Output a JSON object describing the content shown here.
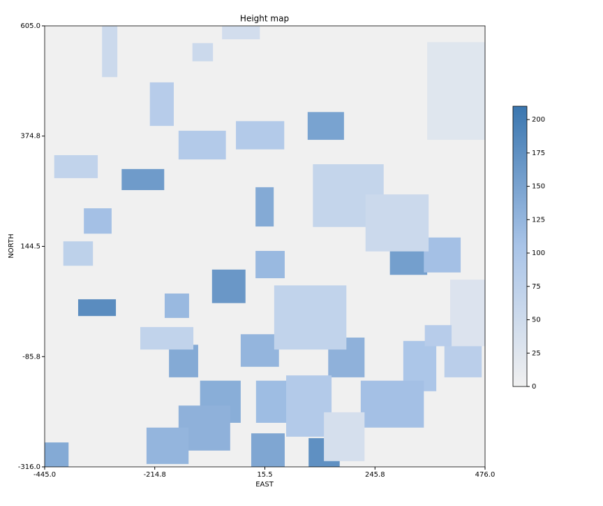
{
  "chart_data": {
    "type": "heatmap",
    "title": "Height map",
    "xlabel": "EAST",
    "ylabel": "NORTH",
    "xlim": [
      -445,
      476
    ],
    "xticks": [
      {
        "value": -445,
        "label": "-445.0"
      },
      {
        "value": -214.8,
        "label": "-214.8"
      },
      {
        "value": 15.5,
        "label": "15.5"
      },
      {
        "value": 245.8,
        "label": "245.8"
      },
      {
        "value": 476,
        "label": "476.0"
      }
    ],
    "ylim": [
      -316,
      605
    ],
    "yticks": [
      {
        "value": -316,
        "label": "-316.0"
      },
      {
        "value": -85.8,
        "label": "-85.8"
      },
      {
        "value": 144.5,
        "label": "144.5"
      },
      {
        "value": 374.8,
        "label": "374.8"
      },
      {
        "value": 605,
        "label": "605.0"
      }
    ],
    "colormap": [
      "#f0f0f0",
      "#a9c4e8",
      "#3a76af"
    ],
    "clim": [
      0,
      210
    ],
    "cticks": [
      0,
      25,
      50,
      75,
      100,
      125,
      150,
      175,
      200
    ],
    "background_value": 0,
    "x0": [
      -225,
      -165,
      -45,
      105,
      -284,
      -4,
      -363,
      -4,
      -95,
      -375,
      -194,
      -185,
      -35,
      148,
      -120,
      -165,
      -232,
      -13,
      107,
      -445,
      -3,
      277,
      348,
      116,
      226,
      35,
      305,
      216,
      60,
      391,
      -406,
      -425,
      -325,
      -136,
      -74,
      -245,
      139,
      355,
      403,
      350
    ],
    "x1": [
      -175,
      -66,
      56,
      181,
      -195,
      34,
      -305,
      57,
      -25,
      -296,
      -143,
      -124,
      45,
      224,
      -35,
      -57,
      -144,
      57,
      172,
      -395,
      70,
      355,
      425,
      264,
      358,
      186,
      374,
      348,
      155,
      469,
      -344,
      -334,
      -293,
      -93,
      5,
      -134,
      224,
      476,
      476,
      406
    ],
    "y0": [
      396,
      326,
      347,
      367,
      262,
      186,
      171,
      78,
      26,
      -1,
      -5,
      -129,
      -107,
      -129,
      -224,
      -282,
      -310,
      -316,
      -316,
      -316,
      -224,
      85,
      90,
      185,
      134,
      -71,
      -158,
      -234,
      -253,
      -129,
      104,
      287,
      498,
      531,
      577,
      -71,
      -304,
      367,
      -64,
      -64
    ],
    "y1": [
      487,
      386,
      406,
      425,
      306,
      268,
      224,
      135,
      96,
      34,
      46,
      -61,
      -39,
      -46,
      -136,
      -188,
      -234,
      -246,
      -256,
      -265,
      -136,
      155,
      163,
      316,
      253,
      63,
      -53,
      -136,
      -125,
      -56,
      155,
      335,
      604,
      569,
      604,
      -24,
      -202,
      571,
      75,
      -20
    ],
    "values": [
      85,
      90,
      90,
      150,
      160,
      140,
      110,
      120,
      165,
      180,
      120,
      140,
      125,
      130,
      135,
      130,
      125,
      145,
      175,
      140,
      115,
      155,
      110,
      65,
      55,
      70,
      100,
      110,
      90,
      80,
      75,
      70,
      55,
      55,
      45,
      70,
      40,
      25,
      30,
      85
    ]
  }
}
